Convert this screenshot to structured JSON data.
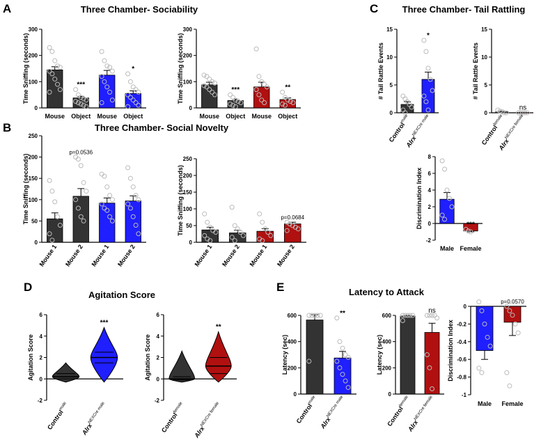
{
  "colors": {
    "black": "#333333",
    "blue": "#1f1fff",
    "red": "#b01010"
  },
  "panel_letters": [
    "A",
    "B",
    "C",
    "D",
    "E"
  ],
  "titles": {
    "A": "Three Chamber- Sociability",
    "B": "Three Chamber- Social Novelty",
    "C": "Three Chamber- Tail Rattling",
    "D": "Agitation Score",
    "E": "Latency to Attack"
  },
  "sup": {
    "male": "male",
    "female": "female",
    "nexcre_male": "NEXCre male",
    "nexcre_female": "NEXCre female"
  },
  "chart_data": [
    {
      "id": "A1",
      "type": "bar",
      "ylabel": "Time Sniffing (seconds)",
      "ylim": [
        0,
        300
      ],
      "yticks": [
        0,
        100,
        200,
        300
      ],
      "categories": [
        "Mouse",
        "Object",
        "Mouse",
        "Object"
      ],
      "values": [
        145,
        38,
        125,
        55
      ],
      "errors": [
        12,
        6,
        18,
        10
      ],
      "colors": [
        "black",
        "black",
        "blue",
        "blue"
      ],
      "sig": [
        "",
        "***",
        "",
        "*"
      ],
      "points": [
        [
          230,
          215,
          180,
          160,
          155,
          140,
          130,
          110,
          90,
          70,
          60
        ],
        [
          70,
          50,
          40,
          35,
          30,
          25,
          20,
          15,
          10,
          5
        ],
        [
          215,
          180,
          160,
          155,
          140,
          120,
          100,
          80,
          60,
          30,
          20
        ],
        [
          130,
          100,
          80,
          70,
          60,
          50,
          40,
          30,
          20,
          10,
          5
        ]
      ]
    },
    {
      "id": "A2",
      "type": "bar",
      "ylabel": "Time Sniffing (seconds)",
      "ylim": [
        0,
        300
      ],
      "yticks": [
        0,
        100,
        200,
        300
      ],
      "categories": [
        "Mouse",
        "Object",
        "Mouse",
        "Object"
      ],
      "values": [
        88,
        28,
        80,
        32
      ],
      "errors": [
        10,
        5,
        18,
        6
      ],
      "colors": [
        "black",
        "black",
        "red",
        "red"
      ],
      "sig": [
        "",
        "***",
        "",
        "**"
      ],
      "points": [
        [
          125,
          120,
          110,
          100,
          95,
          85,
          80,
          70,
          60,
          50
        ],
        [
          50,
          40,
          30,
          25,
          20,
          15,
          10,
          5
        ],
        [
          225,
          120,
          100,
          90,
          80,
          70,
          50,
          30,
          20
        ],
        [
          60,
          40,
          30,
          25,
          20,
          15,
          10
        ]
      ]
    },
    {
      "id": "B1",
      "type": "bar",
      "ylabel": "Time Sniffing (seconds)",
      "ylim": [
        0,
        250
      ],
      "yticks": [
        0,
        50,
        100,
        150,
        200,
        250
      ],
      "categories": [
        "Mouse 1",
        "Mouse 2",
        "Mouse 1",
        "Mouse 2"
      ],
      "values": [
        55,
        108,
        92,
        97
      ],
      "errors": [
        14,
        18,
        12,
        12
      ],
      "colors": [
        "black",
        "black",
        "blue",
        "blue"
      ],
      "sig": [
        "",
        "p=0.0536",
        "",
        ""
      ],
      "points": [
        [
          145,
          120,
          95,
          60,
          40,
          20,
          5
        ],
        [
          200,
          195,
          180,
          140,
          120,
          100,
          80,
          60,
          50
        ],
        [
          160,
          155,
          130,
          110,
          100,
          90,
          80,
          75,
          60,
          50
        ],
        [
          175,
          150,
          130,
          110,
          100,
          90,
          80,
          60,
          40,
          20
        ]
      ]
    },
    {
      "id": "B2",
      "type": "bar",
      "ylabel": "Time Sniffing (seconds)",
      "ylim": [
        0,
        250
      ],
      "yticks": [
        0,
        50,
        100,
        150,
        200,
        250
      ],
      "categories": [
        "Mouse 1",
        "Mouse 2",
        "Mouse 1",
        "Mouse 2"
      ],
      "values": [
        37,
        28,
        33,
        55
      ],
      "errors": [
        8,
        8,
        8,
        5
      ],
      "colors": [
        "black",
        "black",
        "red",
        "red"
      ],
      "sig": [
        "",
        "",
        "",
        "p=0.0684"
      ],
      "points": [
        [
          85,
          60,
          45,
          35,
          30,
          20,
          10,
          5
        ],
        [
          105,
          50,
          40,
          30,
          20,
          15,
          5
        ],
        [
          85,
          60,
          40,
          30,
          20,
          10,
          5
        ],
        [
          60,
          55,
          50,
          45,
          40,
          35
        ]
      ]
    },
    {
      "id": "C1",
      "type": "bar",
      "ylabel": "# Tail Rattle Events",
      "ylim": [
        0,
        15
      ],
      "yticks": [
        0,
        5,
        10,
        15
      ],
      "categories": [
        "Control|male",
        "Alrx|NEXCre male"
      ],
      "values": [
        1.5,
        6
      ],
      "errors": [
        0.5,
        1.3
      ],
      "colors": [
        "black",
        "blue"
      ],
      "sig": [
        "",
        "*"
      ],
      "points": [
        [
          3,
          2.5,
          2,
          1.5,
          1,
          0.5,
          0
        ],
        [
          13,
          11,
          8,
          6,
          4,
          3,
          2,
          0.5
        ]
      ]
    },
    {
      "id": "C2",
      "type": "bar",
      "ylabel": "# Tail Rattle Events",
      "ylim": [
        0,
        15
      ],
      "yticks": [
        0,
        5,
        10,
        15
      ],
      "categories": [
        "Control|female",
        "Alrx|NEXCre female"
      ],
      "values": [
        0.2,
        0.05
      ],
      "errors": [
        0.1,
        0
      ],
      "colors": [
        "black",
        "red"
      ],
      "sig": [
        "",
        "ns"
      ],
      "points": [
        [
          0.5,
          0.3,
          0.2,
          0,
          0
        ],
        [
          0,
          0,
          0,
          0,
          0,
          0
        ]
      ]
    },
    {
      "id": "C3",
      "type": "bar",
      "ylabel": "Discrimination Index",
      "ylim": [
        -2,
        8
      ],
      "yticks": [
        -2,
        0,
        2,
        4,
        6,
        8
      ],
      "categories": [
        "Male",
        "Female"
      ],
      "values": [
        2.9,
        -0.9
      ],
      "errors": [
        0.8,
        0.1
      ],
      "colors": [
        "blue",
        "red"
      ],
      "sig": [
        "",
        "***"
      ],
      "points": [
        [
          7.5,
          6.5,
          4,
          3,
          2,
          1,
          0.5
        ],
        [
          -0.7,
          -0.9,
          -1
        ]
      ]
    },
    {
      "id": "D1",
      "type": "violin",
      "ylabel": "Agitation Score",
      "ylim": [
        -2,
        6
      ],
      "yticks": [
        -2,
        0,
        2,
        4,
        6
      ],
      "categories": [
        "Control|male",
        "Alrx|NEXCre male"
      ],
      "colors": [
        "black",
        "blue"
      ],
      "sig": [
        "",
        "***"
      ],
      "medians": [
        0.2,
        2
      ],
      "quartiles": [
        [
          0,
          0.5
        ],
        [
          1.5,
          2.5
        ]
      ],
      "range": [
        [
          -0.3,
          1.5
        ],
        [
          -0.3,
          4.8
        ]
      ]
    },
    {
      "id": "D2",
      "type": "violin",
      "ylabel": "Agitation Score",
      "ylim": [
        -2,
        6
      ],
      "yticks": [
        -2,
        0,
        2,
        4,
        6
      ],
      "categories": [
        "Control|female",
        "Alrx|NEXCre female"
      ],
      "colors": [
        "black",
        "red"
      ],
      "sig": [
        "",
        "**"
      ],
      "medians": [
        0,
        1.2
      ],
      "quartiles": [
        [
          -0.1,
          0.2
        ],
        [
          0.5,
          2
        ]
      ],
      "range": [
        [
          -0.3,
          2.6
        ],
        [
          -0.3,
          4.4
        ]
      ]
    },
    {
      "id": "E1",
      "type": "bar",
      "ylabel": "Latency (sec)",
      "ylim": [
        0,
        600
      ],
      "yticks": [
        0,
        200,
        400,
        600
      ],
      "categories": [
        "Control|male",
        "Alrx|NEXCre male"
      ],
      "values": [
        565,
        275
      ],
      "errors": [
        40,
        50
      ],
      "colors": [
        "black",
        "blue"
      ],
      "sig": [
        "",
        "**"
      ],
      "points": [
        [
          600,
          600,
          600,
          600,
          600,
          250
        ],
        [
          580,
          400,
          350,
          300,
          280,
          250,
          200,
          150,
          100,
          50
        ]
      ]
    },
    {
      "id": "E2",
      "type": "bar",
      "ylabel": "Latency (sec)",
      "ylim": [
        0,
        600
      ],
      "yticks": [
        0,
        200,
        400,
        600
      ],
      "categories": [
        "Control|female",
        "Alrx|NEXCre female"
      ],
      "values": [
        595,
        470
      ],
      "errors": [
        5,
        70
      ],
      "colors": [
        "black",
        "red"
      ],
      "sig": [
        "",
        "ns"
      ],
      "points": [
        [
          600,
          600,
          600,
          600,
          600,
          560
        ],
        [
          600,
          600,
          600,
          600,
          580,
          300,
          200,
          40
        ]
      ]
    },
    {
      "id": "E3",
      "type": "bar",
      "ylabel": "Discrimination Index",
      "ylim": [
        -1,
        0
      ],
      "yticks": [
        0,
        -0.2,
        -0.4,
        -0.6,
        -0.8,
        -1.0
      ],
      "categories": [
        "Male",
        "Female"
      ],
      "values": [
        -0.5,
        -0.18
      ],
      "errors": [
        0.1,
        0.15
      ],
      "colors": [
        "blue",
        "red"
      ],
      "sig": [
        "",
        "p=0.0570"
      ],
      "points": [
        [
          0.05,
          -0.05,
          -0.2,
          -0.35,
          -0.45,
          -0.7,
          -0.75
        ],
        [
          0.0,
          -0.05,
          -0.1,
          -0.2,
          -0.3,
          -0.75,
          -0.9
        ]
      ]
    }
  ]
}
